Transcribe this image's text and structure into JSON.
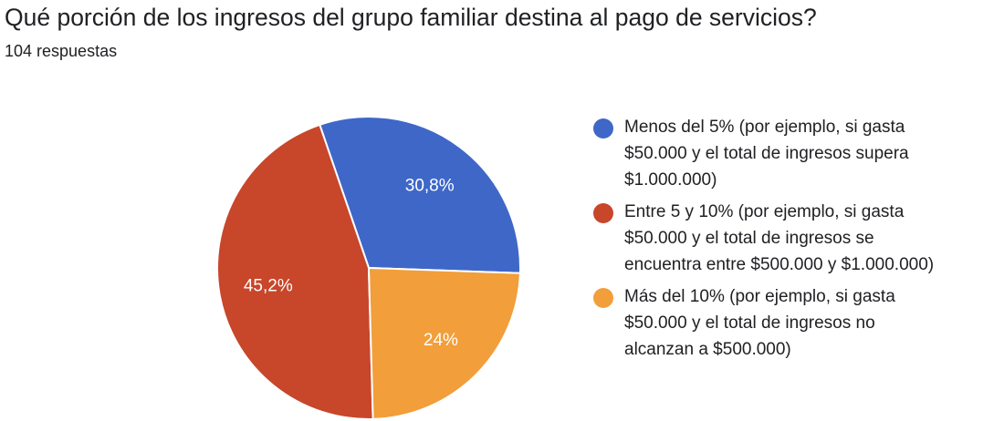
{
  "question": {
    "title": "Qué porción de los ingresos del grupo familiar destina al pago de servicios?",
    "response_count": "104 respuestas"
  },
  "colors": {
    "blue": "#3E67C8",
    "red": "#C8462A",
    "orange": "#F29E3A"
  },
  "chart_data": {
    "type": "pie",
    "title": "Qué porción de los ingresos del grupo familiar destina al pago de servicios?",
    "subtitle": "104 respuestas",
    "start_angle_deg": 358,
    "direction": "counter-clockwise",
    "slices": [
      {
        "label_lines": [
          "Menos del 5% (por ejemplo, si gasta",
          "$50.000 y el total de ingresos supera",
          "$1.000.000)"
        ],
        "value": 30.8,
        "display": "30,8%",
        "color": "#3E67C8"
      },
      {
        "label_lines": [
          "Entre 5 y 10% (por ejemplo, si gasta",
          "$50.000 y el total de ingresos se",
          "encuentra entre $500.000 y $1.000.000)"
        ],
        "value": 45.2,
        "display": "45,2%",
        "color": "#C8462A"
      },
      {
        "label_lines": [
          "Más del 10% (por ejemplo, si gasta",
          "$50.000 y el total de ingresos no",
          "alcanzan a $500.000)"
        ],
        "value": 24.0,
        "display": "24%",
        "color": "#F29E3A"
      }
    ],
    "legend_position": "right"
  }
}
